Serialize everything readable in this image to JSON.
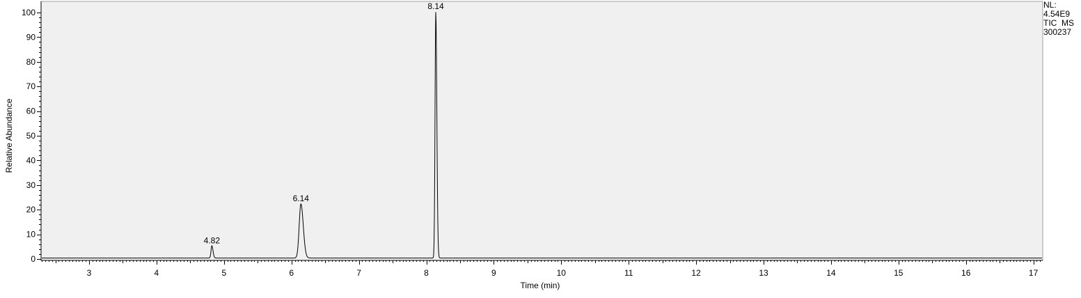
{
  "info": {
    "nl_label": "NL:",
    "nl_value": "4.54E9",
    "scan_type": "TIC  MS",
    "sample_id": "300237"
  },
  "chart_data": {
    "type": "line",
    "title": "",
    "xlabel": "Time (min)",
    "ylabel": "Relative Abundance",
    "xlim": [
      2.3,
      17.2
    ],
    "ylim": [
      0,
      100
    ],
    "x_ticks": [
      3,
      4,
      5,
      6,
      7,
      8,
      9,
      10,
      11,
      12,
      13,
      14,
      15,
      16,
      17
    ],
    "y_ticks": [
      0,
      10,
      20,
      30,
      40,
      50,
      60,
      70,
      80,
      90,
      100
    ],
    "grid": false,
    "background": "#f0f0f0",
    "line_color": "#000000",
    "peaks": [
      {
        "rt": 4.82,
        "label": "4.82",
        "height": 5,
        "width": 0.012
      },
      {
        "rt": 6.14,
        "label": "6.14",
        "height": 22,
        "width": 0.025
      },
      {
        "rt": 8.14,
        "label": "8.14",
        "height": 100,
        "width": 0.011
      }
    ],
    "baseline": 0.4
  }
}
